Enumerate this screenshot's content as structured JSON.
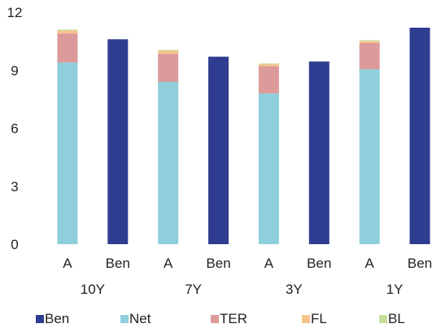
{
  "chart_data": {
    "type": "bar",
    "stacked": true,
    "ylim": [
      0,
      12
    ],
    "yticks": [
      0,
      3,
      6,
      9,
      12
    ],
    "grid": false,
    "legend_position": "bottom",
    "groups": [
      "10Y",
      "7Y",
      "3Y",
      "1Y"
    ],
    "categories": [
      "A",
      "Ben",
      "A",
      "Ben",
      "A",
      "Ben",
      "A",
      "Ben"
    ],
    "category_group": [
      0,
      0,
      1,
      1,
      2,
      2,
      3,
      3
    ],
    "series": [
      {
        "name": "Ben",
        "color": "#2e3d8f",
        "values": [
          0,
          10.6,
          0,
          9.7,
          0,
          9.45,
          0,
          11.2
        ]
      },
      {
        "name": "Net",
        "color": "#8ecfdb",
        "values": [
          9.4,
          0,
          8.4,
          0,
          7.8,
          0,
          9.05,
          0
        ]
      },
      {
        "name": "TER",
        "color": "#dc9a9a",
        "values": [
          1.5,
          0,
          1.45,
          0,
          1.4,
          0,
          1.35,
          0
        ]
      },
      {
        "name": "FL",
        "color": "#f7c48c",
        "values": [
          0.15,
          0,
          0.15,
          0,
          0.1,
          0,
          0.1,
          0
        ]
      },
      {
        "name": "BL",
        "color": "#c5dd9c",
        "values": [
          0.05,
          0,
          0.05,
          0,
          0.05,
          0,
          0.05,
          0
        ]
      }
    ]
  }
}
